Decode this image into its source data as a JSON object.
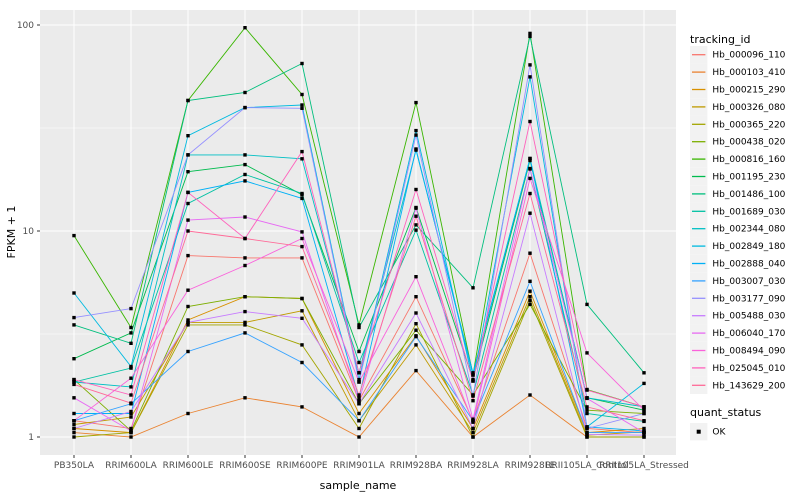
{
  "chart_data": {
    "type": "line",
    "title": "",
    "xlabel": "sample_name",
    "ylabel": "FPKM + 1",
    "y_scale": "log10",
    "y_ticks": [
      1,
      10,
      100
    ],
    "y_minor_ticks": [
      3.162,
      31.623
    ],
    "ylim": [
      0.82,
      118
    ],
    "grid": "on",
    "legend_position": "right",
    "point_shape": "filled-square",
    "point_color": "#000000",
    "categories": [
      "PB350LA",
      "RRIM600LA",
      "RRIM600LE",
      "RRIM600SE",
      "RRIM600PE",
      "RRIM901LA",
      "RRIM928BA",
      "RRIM928LA",
      "RRIM928LE",
      "RRII105LA_Control",
      "RRII105LA_Stressed"
    ],
    "series": [
      {
        "name": "Hb_000096_110",
        "color": "#F8766D",
        "values": [
          1.2,
          1.1,
          7.6,
          7.4,
          7.4,
          1.5,
          4.8,
          1.2,
          7.8,
          1.1,
          1.05
        ]
      },
      {
        "name": "Hb_000103_410",
        "color": "#EA8331",
        "values": [
          1.05,
          1.0,
          1.3,
          1.55,
          1.4,
          1.0,
          2.1,
          1.0,
          1.6,
          1.0,
          1.0
        ]
      },
      {
        "name": "Hb_000215_290",
        "color": "#D89000",
        "values": [
          1.1,
          1.05,
          3.7,
          4.8,
          4.7,
          1.3,
          3.1,
          1.1,
          5.1,
          1.05,
          1.1
        ]
      },
      {
        "name": "Hb_000326_080",
        "color": "#C09B00",
        "values": [
          1.15,
          1.25,
          3.6,
          3.6,
          4.1,
          1.2,
          2.8,
          1.05,
          4.8,
          1.02,
          1.06
        ]
      },
      {
        "name": "Hb_000365_220",
        "color": "#A3A500",
        "values": [
          1.0,
          1.05,
          3.5,
          3.5,
          2.8,
          1.1,
          3.55,
          1.0,
          4.6,
          1.0,
          1.0
        ]
      },
      {
        "name": "Hb_000438_020",
        "color": "#7CAE00",
        "values": [
          1.9,
          1.07,
          4.3,
          4.8,
          4.7,
          1.45,
          3.3,
          1.6,
          4.4,
          1.35,
          1.3
        ]
      },
      {
        "name": "Hb_000816_160",
        "color": "#39B600",
        "values": [
          9.5,
          3.4,
          43,
          97,
          46,
          3.5,
          42,
          2.0,
          91,
          1.7,
          1.4
        ]
      },
      {
        "name": "Hb_001195_230",
        "color": "#00BB4E",
        "values": [
          2.4,
          3.2,
          19.4,
          21,
          15,
          2.6,
          13,
          1.9,
          22,
          1.55,
          1.35
        ]
      },
      {
        "name": "Hb_001486_100",
        "color": "#00BF7D",
        "values": [
          3.5,
          2.85,
          43,
          47,
          65,
          3.4,
          10.7,
          5.3,
          88,
          4.4,
          2.05
        ]
      },
      {
        "name": "Hb_001689_030",
        "color": "#00C1A3",
        "values": [
          1.85,
          2.16,
          13.6,
          18.8,
          15.2,
          2.3,
          10.1,
          1.6,
          20,
          1.3,
          1.19
        ]
      },
      {
        "name": "Hb_002344_080",
        "color": "#00BFC4",
        "values": [
          1.85,
          1.75,
          23.4,
          23.4,
          22.4,
          2.05,
          24.7,
          2.05,
          22.5,
          1.55,
          1.4
        ]
      },
      {
        "name": "Hb_002849_180",
        "color": "#00BAE0",
        "values": [
          5.0,
          2.2,
          29,
          39.7,
          40.9,
          1.9,
          30.7,
          1.87,
          56,
          1.12,
          1.82
        ]
      },
      {
        "name": "Hb_002888_040",
        "color": "#00B0F6",
        "values": [
          1.3,
          1.3,
          15.4,
          17.5,
          14.4,
          1.55,
          25,
          2.0,
          22.5,
          1.12,
          1.07
        ]
      },
      {
        "name": "Hb_003007_030",
        "color": "#35A2FF",
        "values": [
          1.2,
          1.45,
          2.6,
          3.2,
          2.3,
          1.2,
          3.07,
          1.2,
          5.7,
          1.05,
          1.05
        ]
      },
      {
        "name": "Hb_003177_090",
        "color": "#9590FF",
        "values": [
          3.8,
          4.2,
          23.4,
          39.7,
          39.4,
          1.85,
          29.2,
          1.58,
          64,
          1.1,
          1.3
        ]
      },
      {
        "name": "Hb_005488_030",
        "color": "#C77CFF",
        "values": [
          1.1,
          1.33,
          3.6,
          4.06,
          3.77,
          1.45,
          4.0,
          1.1,
          12.2,
          1.03,
          1.02
        ]
      },
      {
        "name": "Hb_006040_170",
        "color": "#E76BF3",
        "values": [
          1.55,
          1.07,
          11.3,
          11.7,
          9.9,
          1.5,
          12.9,
          1.22,
          20.1,
          1.54,
          1.05
        ]
      },
      {
        "name": "Hb_008494_090",
        "color": "#FA62DB",
        "values": [
          1.2,
          1.93,
          5.16,
          6.8,
          9.2,
          1.85,
          6.0,
          1.18,
          18,
          2.56,
          1.35
        ]
      },
      {
        "name": "Hb_025045_010",
        "color": "#FF62BC",
        "values": [
          1.9,
          1.6,
          15.4,
          9.2,
          24.3,
          2.05,
          15.9,
          1.87,
          34,
          1.69,
          1.4
        ]
      },
      {
        "name": "Hb_143629_200",
        "color": "#FF6A98",
        "values": [
          1.8,
          1.46,
          10.0,
          9.2,
          8.4,
          1.6,
          11.8,
          1.5,
          15.2,
          1.4,
          1.2
        ]
      }
    ]
  },
  "legend": {
    "tracking_title": "tracking_id",
    "quant_title": "quant_status",
    "quant_items": [
      {
        "label": "OK"
      }
    ]
  },
  "theme": {
    "panel_bg": "#EBEBEB",
    "grid_color": "#FFFFFF",
    "tick_text_color": "#4D4D4D",
    "axis_title_color": "#000000",
    "tick_mark_color": "#333333",
    "legend_key_bg": "#F2F2F2",
    "legend_text_color": "#000000"
  }
}
